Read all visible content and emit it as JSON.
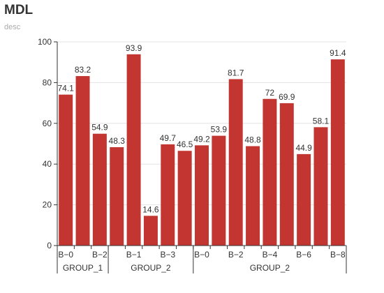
{
  "chart_data": {
    "type": "bar",
    "title": "MDL",
    "subtitle": "desc",
    "ylim": [
      0,
      100
    ],
    "yticks": [
      0,
      20,
      40,
      60,
      80,
      100
    ],
    "grid": true,
    "color": "#c23531",
    "values": [
      74.1,
      83.2,
      54.9,
      48.3,
      93.9,
      14.6,
      49.7,
      46.5,
      49.2,
      53.9,
      81.7,
      48.8,
      72,
      69.9,
      44.9,
      58.1,
      91.4
    ],
    "value_labels": [
      "74.1",
      "83.2",
      "54.9",
      "48.3",
      "93.9",
      "14.6",
      "49.7",
      "46.5",
      "49.2",
      "53.9",
      "81.7",
      "48.8",
      "72",
      "69.9",
      "44.9",
      "58.1",
      "91.4"
    ],
    "category_labels": [
      "B−0",
      "",
      "B−2",
      "",
      "B−1",
      "",
      "B−3",
      "",
      "B−0",
      "",
      "B−2",
      "",
      "B−4",
      "",
      "B−6",
      "",
      "B−8"
    ],
    "groups": [
      {
        "name": "GROUP_1",
        "count": 3
      },
      {
        "name": "GROUP_2",
        "count": 5
      },
      {
        "name": "GROUP_2",
        "count": 9
      }
    ]
  }
}
